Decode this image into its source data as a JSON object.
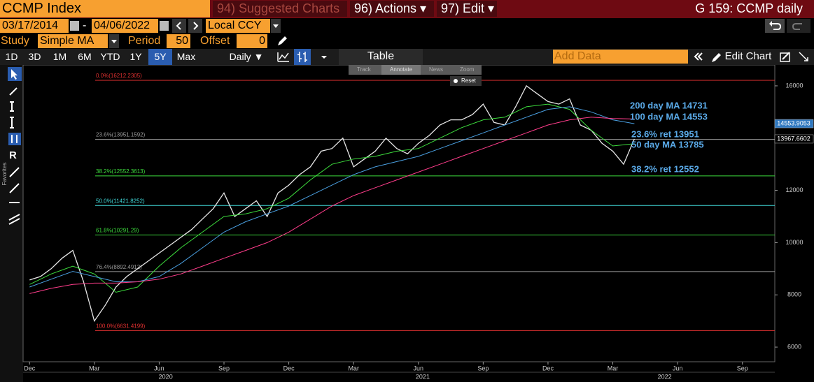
{
  "header": {
    "security": "CCMP Index",
    "suggested": "94) Suggested Charts",
    "actions": "96) Actions ▾",
    "edit": "97) Edit ▾",
    "chart_id": "G 159: CCMP daily"
  },
  "range": {
    "start": "03/17/2014",
    "separator": "-",
    "end": "04/06/2022",
    "currency": "Local CCY"
  },
  "study": {
    "label": "Study",
    "name": "Simple MA",
    "period_label": "Period",
    "period": 50,
    "offset_label": "Offset",
    "offset": 0
  },
  "toolbar": {
    "periods": [
      "1D",
      "3D",
      "1M",
      "6M",
      "YTD",
      "1Y",
      "5Y",
      "Max"
    ],
    "active_index": 6,
    "frequency": "Daily ▼",
    "table": "Table",
    "add_data": "Add Data",
    "edit_chart": "Edit Chart"
  },
  "chart_tools": [
    "Track",
    "Annotate",
    "News",
    "Zoom"
  ],
  "reset": "Reset",
  "favorites": "Favorites",
  "chart_data": {
    "type": "line",
    "xlim": [
      -0.3,
      34.5
    ],
    "xticks": [
      {
        "value": 0,
        "label": "Dec"
      },
      {
        "value": 3,
        "label": "Mar"
      },
      {
        "value": 6,
        "label": "Jun"
      },
      {
        "value": 9,
        "label": "Sep"
      },
      {
        "value": 12,
        "label": "Dec"
      },
      {
        "value": 15,
        "label": "Mar"
      },
      {
        "value": 18,
        "label": "Jun"
      },
      {
        "value": 21,
        "label": "Sep"
      },
      {
        "value": 24,
        "label": "Dec"
      },
      {
        "value": 27,
        "label": "Mar"
      },
      {
        "value": 30,
        "label": "Jun"
      },
      {
        "value": 33,
        "label": "Sep"
      }
    ],
    "year_ticks": [
      {
        "value": 6.3,
        "label": "2020"
      },
      {
        "value": 18.2,
        "label": "2021"
      },
      {
        "value": 29.4,
        "label": "2022"
      }
    ],
    "ylim": [
      5440,
      16800
    ],
    "yticks": [
      6000,
      8000,
      10000,
      12000,
      14000,
      16000
    ],
    "series": [
      {
        "color": "#e6e6e6",
        "x": [
          0,
          0.5,
          1,
          1.5,
          2,
          2.5,
          3,
          3.5,
          4,
          4.5,
          5,
          5.5,
          6,
          6.5,
          7,
          7.5,
          8,
          8.5,
          9,
          9.5,
          10,
          10.5,
          11,
          11.5,
          12,
          12.5,
          13,
          13.5,
          14,
          14.5,
          15,
          15.5,
          16,
          16.5,
          17,
          17.5,
          18,
          18.5,
          19,
          19.5,
          20,
          20.5,
          21,
          21.5,
          22,
          22.5,
          23,
          23.5,
          24,
          24.5,
          25,
          25.5,
          26,
          26.5,
          27,
          27.5,
          28
        ],
        "values": [
          8570,
          8700,
          9000,
          9400,
          9700,
          8500,
          7000,
          7600,
          8300,
          8700,
          9000,
          9300,
          9600,
          9900,
          10200,
          10500,
          10900,
          11300,
          11900,
          11000,
          11300,
          11600,
          11000,
          11900,
          12200,
          12600,
          12900,
          13500,
          13600,
          14000,
          12900,
          13200,
          13500,
          14000,
          13600,
          13400,
          13800,
          14100,
          14500,
          14700,
          14700,
          14900,
          15300,
          14600,
          14500,
          15200,
          16000,
          15700,
          15400,
          15300,
          15500,
          14500,
          14300,
          13800,
          13500,
          13000,
          13970
        ]
      },
      {
        "color": "#3ddc3d",
        "x": [
          0,
          1,
          2,
          3,
          4,
          5,
          6,
          7,
          8,
          9,
          10,
          11,
          12,
          13,
          14,
          15,
          16,
          17,
          18,
          19,
          20,
          21,
          22,
          23,
          24,
          25,
          26,
          27,
          28
        ],
        "values": [
          8400,
          8800,
          9100,
          8800,
          8100,
          8300,
          9100,
          9800,
          10400,
          11000,
          11100,
          11300,
          11700,
          12400,
          13000,
          13200,
          13300,
          13500,
          13600,
          14000,
          14400,
          14700,
          14800,
          15200,
          15300,
          15100,
          14300,
          13700,
          13785
        ]
      },
      {
        "color": "#4a9fe0",
        "x": [
          0,
          1,
          2,
          3,
          4,
          5,
          6,
          7,
          8,
          9,
          10,
          11,
          12,
          13,
          14,
          15,
          16,
          17,
          18,
          19,
          20,
          21,
          22,
          23,
          24,
          25,
          26,
          27,
          28
        ],
        "values": [
          8300,
          8600,
          8900,
          8700,
          8500,
          8500,
          8700,
          9200,
          9800,
          10400,
          10800,
          11100,
          11400,
          11800,
          12200,
          12600,
          12900,
          13100,
          13300,
          13600,
          13900,
          14200,
          14500,
          14800,
          15100,
          15200,
          15000,
          14700,
          14553
        ]
      },
      {
        "color": "#ff3d8b",
        "x": [
          0,
          1,
          2,
          3,
          4,
          5,
          6,
          7,
          8,
          9,
          10,
          11,
          12,
          13,
          14,
          15,
          16,
          17,
          18,
          19,
          20,
          21,
          22,
          23,
          24,
          25,
          26,
          27,
          28
        ],
        "values": [
          8050,
          8250,
          8400,
          8450,
          8450,
          8500,
          8600,
          8800,
          9100,
          9400,
          9700,
          10000,
          10400,
          10900,
          11400,
          11800,
          12100,
          12400,
          12700,
          13000,
          13300,
          13600,
          13900,
          14200,
          14500,
          14700,
          14800,
          14750,
          14731
        ]
      }
    ],
    "fib_levels": {
      "values": [
        16212.2305,
        13951.1592,
        12552.3613,
        11421.8252,
        10291.29,
        8892.4912,
        6631.4199
      ],
      "value_labels": [
        "0.0%(16212.2305)",
        "23.6%(13951.1592)",
        "38.2%(12552.3613)",
        "50.0%(11421.8252)",
        "61.8%(10291.29)",
        "76.4%(8892.4912)",
        "100.0%(6631.4199)"
      ],
      "colors": [
        "#e03030",
        "#9a9a9a",
        "#3ddc3d",
        "#40d8d8",
        "#3ddc3d",
        "#9a9a9a",
        "#e03030"
      ]
    },
    "price_tags": {
      "values": [
        14553.9053,
        13967.6602
      ],
      "colors": [
        "#2f78c0",
        "#000000"
      ]
    },
    "annotations": [
      "200 day MA 14731",
      "100 day MA 14553",
      "23.6% ret 13951",
      "50 day MA 13785",
      "38.2% ret 12552"
    ]
  }
}
